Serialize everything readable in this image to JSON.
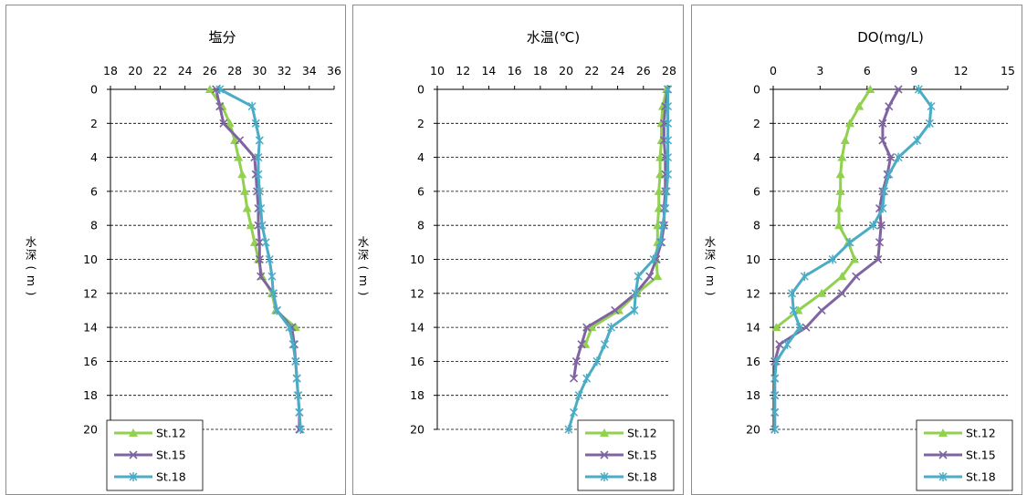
{
  "chart_data": [
    {
      "type": "line",
      "title": "塩分",
      "ylabel": [
        "水",
        "深",
        "(",
        "m",
        ")"
      ],
      "xlim": [
        18,
        36
      ],
      "xticks": [
        "18",
        "20",
        "22",
        "24",
        "26",
        "28",
        "30",
        "32",
        "34",
        "36"
      ],
      "ylim": [
        0,
        20
      ],
      "yticks": [
        "0",
        "2",
        "4",
        "6",
        "8",
        "10",
        "12",
        "14",
        "16",
        "18",
        "20"
      ],
      "gridlines": "horizontal-dashed",
      "legend_position": "bottom-left",
      "y": [
        0,
        1,
        2,
        3,
        4,
        5,
        6,
        7,
        8,
        9,
        10,
        11,
        12,
        13,
        14,
        15,
        16,
        17,
        18,
        19,
        20
      ],
      "series": [
        {
          "name": "St.12",
          "color": "#92d050",
          "marker": "triangle",
          "x": [
            26.0,
            27.0,
            27.6,
            28.0,
            28.3,
            28.6,
            28.8,
            29.0,
            29.3,
            29.6,
            29.9,
            30.2,
            31.0,
            31.3,
            32.9,
            null,
            null,
            null,
            null,
            null,
            null
          ]
        },
        {
          "name": "St.15",
          "color": "#8064a2",
          "marker": "x",
          "x": [
            26.5,
            26.8,
            27.1,
            28.4,
            29.6,
            29.7,
            29.8,
            29.9,
            29.9,
            30.0,
            30.0,
            30.1,
            31.1,
            31.4,
            32.6,
            32.8,
            32.9,
            33.0,
            33.1,
            33.2,
            33.2
          ]
        },
        {
          "name": "St.18",
          "color": "#4bacc6",
          "marker": "star",
          "x": [
            26.8,
            29.4,
            29.7,
            30.0,
            29.9,
            29.9,
            30.0,
            30.1,
            30.2,
            30.5,
            30.8,
            31.0,
            31.1,
            31.4,
            32.4,
            32.7,
            32.9,
            33.0,
            33.1,
            33.2,
            33.3
          ]
        }
      ]
    },
    {
      "type": "line",
      "title": "水温(℃)",
      "ylabel": [
        "水",
        "深",
        "(",
        "m",
        ")"
      ],
      "xlim": [
        10,
        28
      ],
      "xticks": [
        "10",
        "12",
        "14",
        "16",
        "18",
        "20",
        "22",
        "24",
        "26",
        "28"
      ],
      "ylim": [
        0,
        20
      ],
      "yticks": [
        "0",
        "2",
        "4",
        "6",
        "8",
        "10",
        "12",
        "14",
        "16",
        "18",
        "20"
      ],
      "gridlines": "horizontal-dashed",
      "legend_position": "bottom-right",
      "y": [
        0,
        1,
        2,
        3,
        4,
        5,
        6,
        7,
        8,
        9,
        10,
        11,
        12,
        13,
        14,
        15,
        16,
        17,
        18,
        19,
        20
      ],
      "series": [
        {
          "name": "St.12",
          "color": "#92d050",
          "marker": "triangle",
          "x": [
            27.8,
            27.5,
            27.4,
            27.4,
            27.3,
            27.3,
            27.2,
            27.2,
            27.1,
            27.1,
            27.0,
            27.1,
            25.5,
            24.1,
            22.0,
            21.5,
            null,
            null,
            null,
            null,
            null
          ]
        },
        {
          "name": "St.15",
          "color": "#8064a2",
          "marker": "x",
          "x": [
            27.9,
            27.7,
            27.6,
            27.6,
            27.7,
            27.7,
            27.7,
            27.6,
            27.6,
            27.4,
            27.0,
            26.5,
            25.4,
            23.8,
            21.6,
            21.2,
            20.8,
            20.6,
            null,
            null,
            null
          ]
        },
        {
          "name": "St.18",
          "color": "#4bacc6",
          "marker": "star",
          "x": [
            27.9,
            27.9,
            27.9,
            27.9,
            27.9,
            27.9,
            27.8,
            27.7,
            27.5,
            27.3,
            26.8,
            25.6,
            25.4,
            25.3,
            23.5,
            23.0,
            22.4,
            21.6,
            21.0,
            20.6,
            20.2
          ]
        }
      ]
    },
    {
      "type": "line",
      "title": "DO(mg/L)",
      "ylabel": [
        "水",
        "深",
        "(",
        "m",
        ")"
      ],
      "xlim": [
        0,
        15
      ],
      "xticks": [
        "0",
        "3",
        "6",
        "9",
        "12",
        "15"
      ],
      "ylim": [
        0,
        20
      ],
      "yticks": [
        "0",
        "2",
        "4",
        "6",
        "8",
        "10",
        "12",
        "14",
        "16",
        "18",
        "20"
      ],
      "gridlines": "horizontal-dashed",
      "legend_position": "bottom-right",
      "y": [
        0,
        1,
        2,
        3,
        4,
        5,
        6,
        7,
        8,
        9,
        10,
        11,
        12,
        13,
        14,
        15,
        16,
        17,
        18,
        19,
        20
      ],
      "series": [
        {
          "name": "St.12",
          "color": "#92d050",
          "marker": "triangle",
          "x": [
            6.2,
            5.5,
            4.9,
            4.6,
            4.4,
            4.3,
            4.3,
            4.2,
            4.2,
            4.8,
            5.2,
            4.4,
            3.1,
            1.6,
            0.2,
            null,
            null,
            null,
            null,
            null,
            null
          ]
        },
        {
          "name": "St.15",
          "color": "#8064a2",
          "marker": "x",
          "x": [
            8.0,
            7.4,
            7.0,
            7.0,
            7.5,
            7.3,
            7.0,
            6.8,
            6.9,
            6.8,
            6.7,
            5.3,
            4.4,
            3.1,
            2.1,
            0.4,
            0.1,
            0.1,
            0.1,
            0.1,
            0.1
          ]
        },
        {
          "name": "St.18",
          "color": "#4bacc6",
          "marker": "star",
          "x": [
            9.3,
            10.1,
            10.0,
            9.2,
            8.0,
            7.4,
            7.1,
            7.0,
            6.4,
            4.9,
            3.8,
            2.0,
            1.2,
            1.3,
            1.7,
            0.9,
            0.2,
            0.1,
            0.1,
            0.1,
            0.1
          ]
        }
      ]
    }
  ]
}
